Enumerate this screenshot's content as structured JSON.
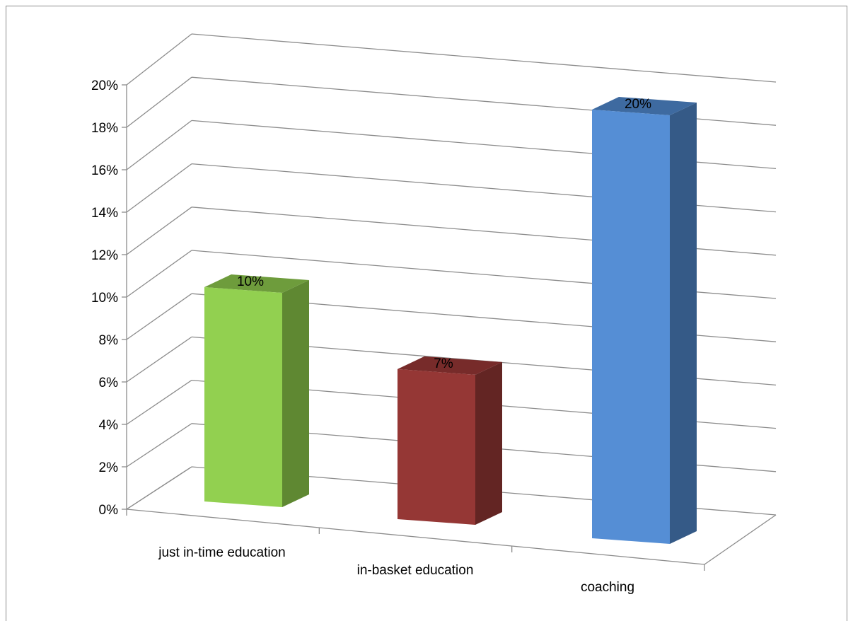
{
  "chart_data": {
    "type": "bar",
    "three_d": true,
    "categories": [
      "just in-time education",
      "in-basket education",
      "coaching"
    ],
    "values": [
      10,
      7,
      20
    ],
    "data_labels": [
      "10%",
      "7%",
      "20%"
    ],
    "ylim": [
      0,
      20
    ],
    "y_step": 2,
    "y_tick_labels": [
      "0%",
      "2%",
      "4%",
      "6%",
      "8%",
      "10%",
      "12%",
      "14%",
      "16%",
      "18%",
      "20%"
    ],
    "grid": true,
    "legend": "none",
    "colors": {
      "bars": [
        "#92d050",
        "#953735",
        "#558ed5"
      ],
      "bar_sides": [
        "#5f8832",
        "#632523",
        "#355a87"
      ],
      "bar_tops": [
        "#6e9c3c",
        "#772b2a",
        "#3e6aa0"
      ],
      "grid": "#8c8c8c"
    }
  }
}
